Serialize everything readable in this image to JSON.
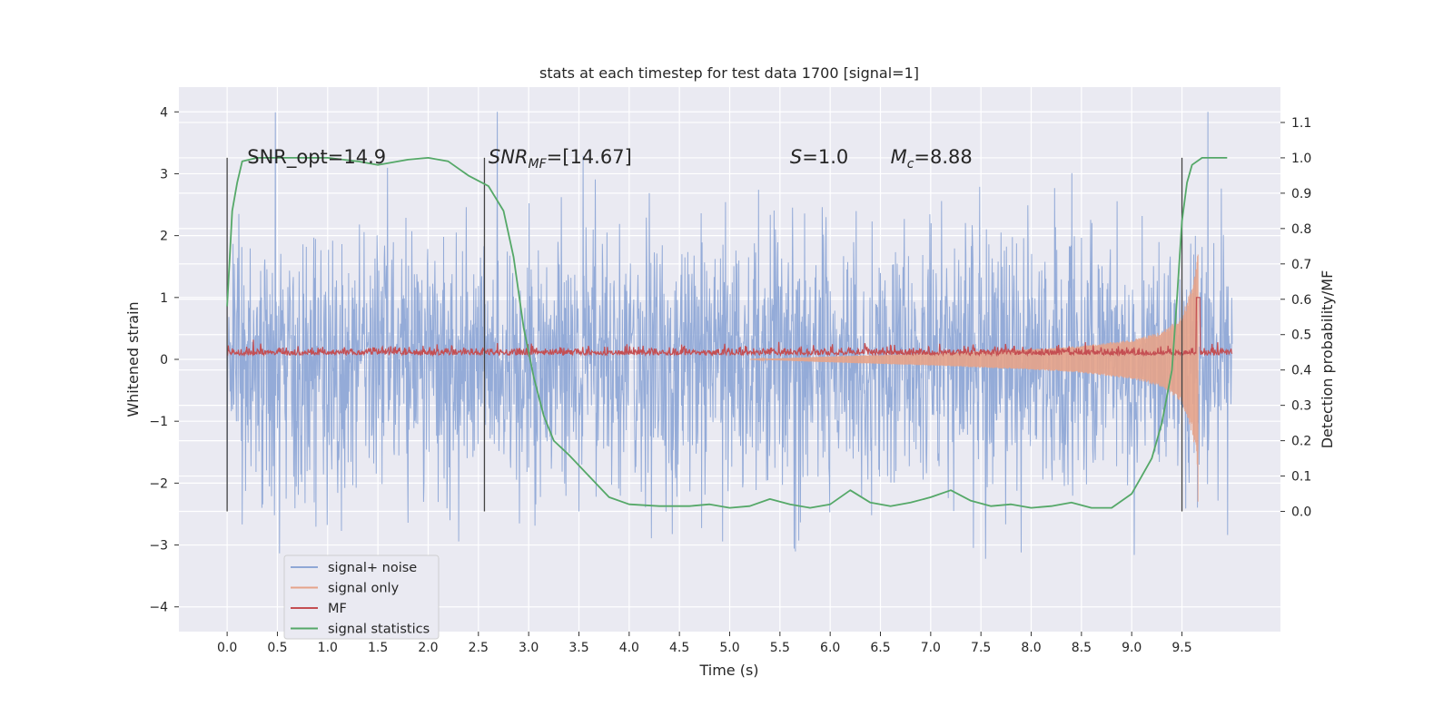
{
  "chart_data": {
    "type": "line",
    "title": "stats at each timestep for test data 1700 [signal=1]",
    "xlabel": "Time (s)",
    "ylabel": "Whitened strain",
    "y2label": "Detection probability/MF",
    "xlim": [
      -0.48,
      10.48
    ],
    "ylim": [
      -4.4,
      4.4
    ],
    "y2lim": [
      -0.34,
      1.2
    ],
    "x_ticks": [
      "0.0",
      "0.5",
      "1.0",
      "1.5",
      "2.0",
      "2.5",
      "3.0",
      "3.5",
      "4.0",
      "4.5",
      "5.0",
      "5.5",
      "6.0",
      "6.5",
      "7.0",
      "7.5",
      "8.0",
      "8.5",
      "9.0",
      "9.5"
    ],
    "y_ticks": [
      "4",
      "3",
      "2",
      "1",
      "0",
      "−1",
      "−2",
      "−3",
      "−4"
    ],
    "y2_ticks": [
      "1.1",
      "1.0",
      "0.9",
      "0.8",
      "0.7",
      "0.6",
      "0.5",
      "0.4",
      "0.3",
      "0.2",
      "0.1",
      "0.0"
    ],
    "grid": true,
    "legend_position": "lower-left",
    "annotations": [
      {
        "text": "SNR_opt=14.9",
        "x": 0.2
      },
      {
        "text": "SNR",
        "sub": "MF",
        "suffix": "=[14.67]",
        "x": 2.6
      },
      {
        "text": "S",
        "suffix": "=1.0",
        "x": 5.6
      },
      {
        "text": "M",
        "sub": "c",
        "suffix": "=8.88",
        "x": 6.6
      }
    ],
    "vertical_markers": [
      0.0,
      2.56,
      9.5
    ],
    "series": [
      {
        "name": "signal+ noise",
        "color": "#8fa8d6",
        "axis": "left",
        "kind": "noise",
        "x_range": [
          0.0,
          10.0
        ],
        "sigma": 1.0
      },
      {
        "name": "signal only",
        "color": "#e5a38a",
        "axis": "left",
        "kind": "chirp",
        "x_range": [
          5.2,
          9.66
        ],
        "envelope": {
          "x": [
            5.2,
            6.0,
            7.0,
            8.0,
            8.5,
            9.0,
            9.3,
            9.5,
            9.6,
            9.66
          ],
          "y": [
            0.0,
            0.05,
            0.1,
            0.17,
            0.22,
            0.32,
            0.45,
            0.7,
            1.2,
            1.8
          ]
        }
      },
      {
        "name": "MF",
        "color": "#c44e52",
        "axis": "left",
        "kind": "noise",
        "x_range": [
          0.0,
          10.0
        ],
        "baseline": 0.1,
        "spread": 0.1,
        "peak": {
          "x": 9.66,
          "y": 1.0
        }
      },
      {
        "name": "signal statistics",
        "color": "#55a868",
        "axis": "right",
        "x": [
          0.0,
          0.05,
          0.1,
          0.15,
          0.3,
          0.6,
          1.0,
          1.3,
          1.5,
          1.8,
          2.0,
          2.2,
          2.4,
          2.6,
          2.75,
          2.85,
          2.95,
          3.05,
          3.15,
          3.25,
          3.4,
          3.6,
          3.8,
          4.0,
          4.3,
          4.6,
          4.8,
          5.0,
          5.2,
          5.4,
          5.6,
          5.8,
          6.0,
          6.2,
          6.4,
          6.6,
          6.8,
          7.0,
          7.2,
          7.4,
          7.6,
          7.8,
          8.0,
          8.2,
          8.4,
          8.6,
          8.8,
          9.0,
          9.1,
          9.2,
          9.3,
          9.4,
          9.45,
          9.5,
          9.55,
          9.6,
          9.7,
          9.8,
          9.95
        ],
        "y": [
          0.58,
          0.85,
          0.93,
          0.99,
          1.0,
          1.0,
          1.0,
          0.99,
          0.98,
          0.995,
          1.0,
          0.99,
          0.95,
          0.92,
          0.85,
          0.72,
          0.52,
          0.38,
          0.27,
          0.2,
          0.16,
          0.1,
          0.04,
          0.02,
          0.015,
          0.015,
          0.02,
          0.01,
          0.015,
          0.035,
          0.02,
          0.01,
          0.02,
          0.06,
          0.025,
          0.015,
          0.025,
          0.04,
          0.06,
          0.03,
          0.015,
          0.02,
          0.01,
          0.015,
          0.025,
          0.01,
          0.01,
          0.05,
          0.1,
          0.15,
          0.25,
          0.4,
          0.6,
          0.82,
          0.93,
          0.98,
          1.0,
          1.0,
          1.0
        ]
      }
    ]
  }
}
